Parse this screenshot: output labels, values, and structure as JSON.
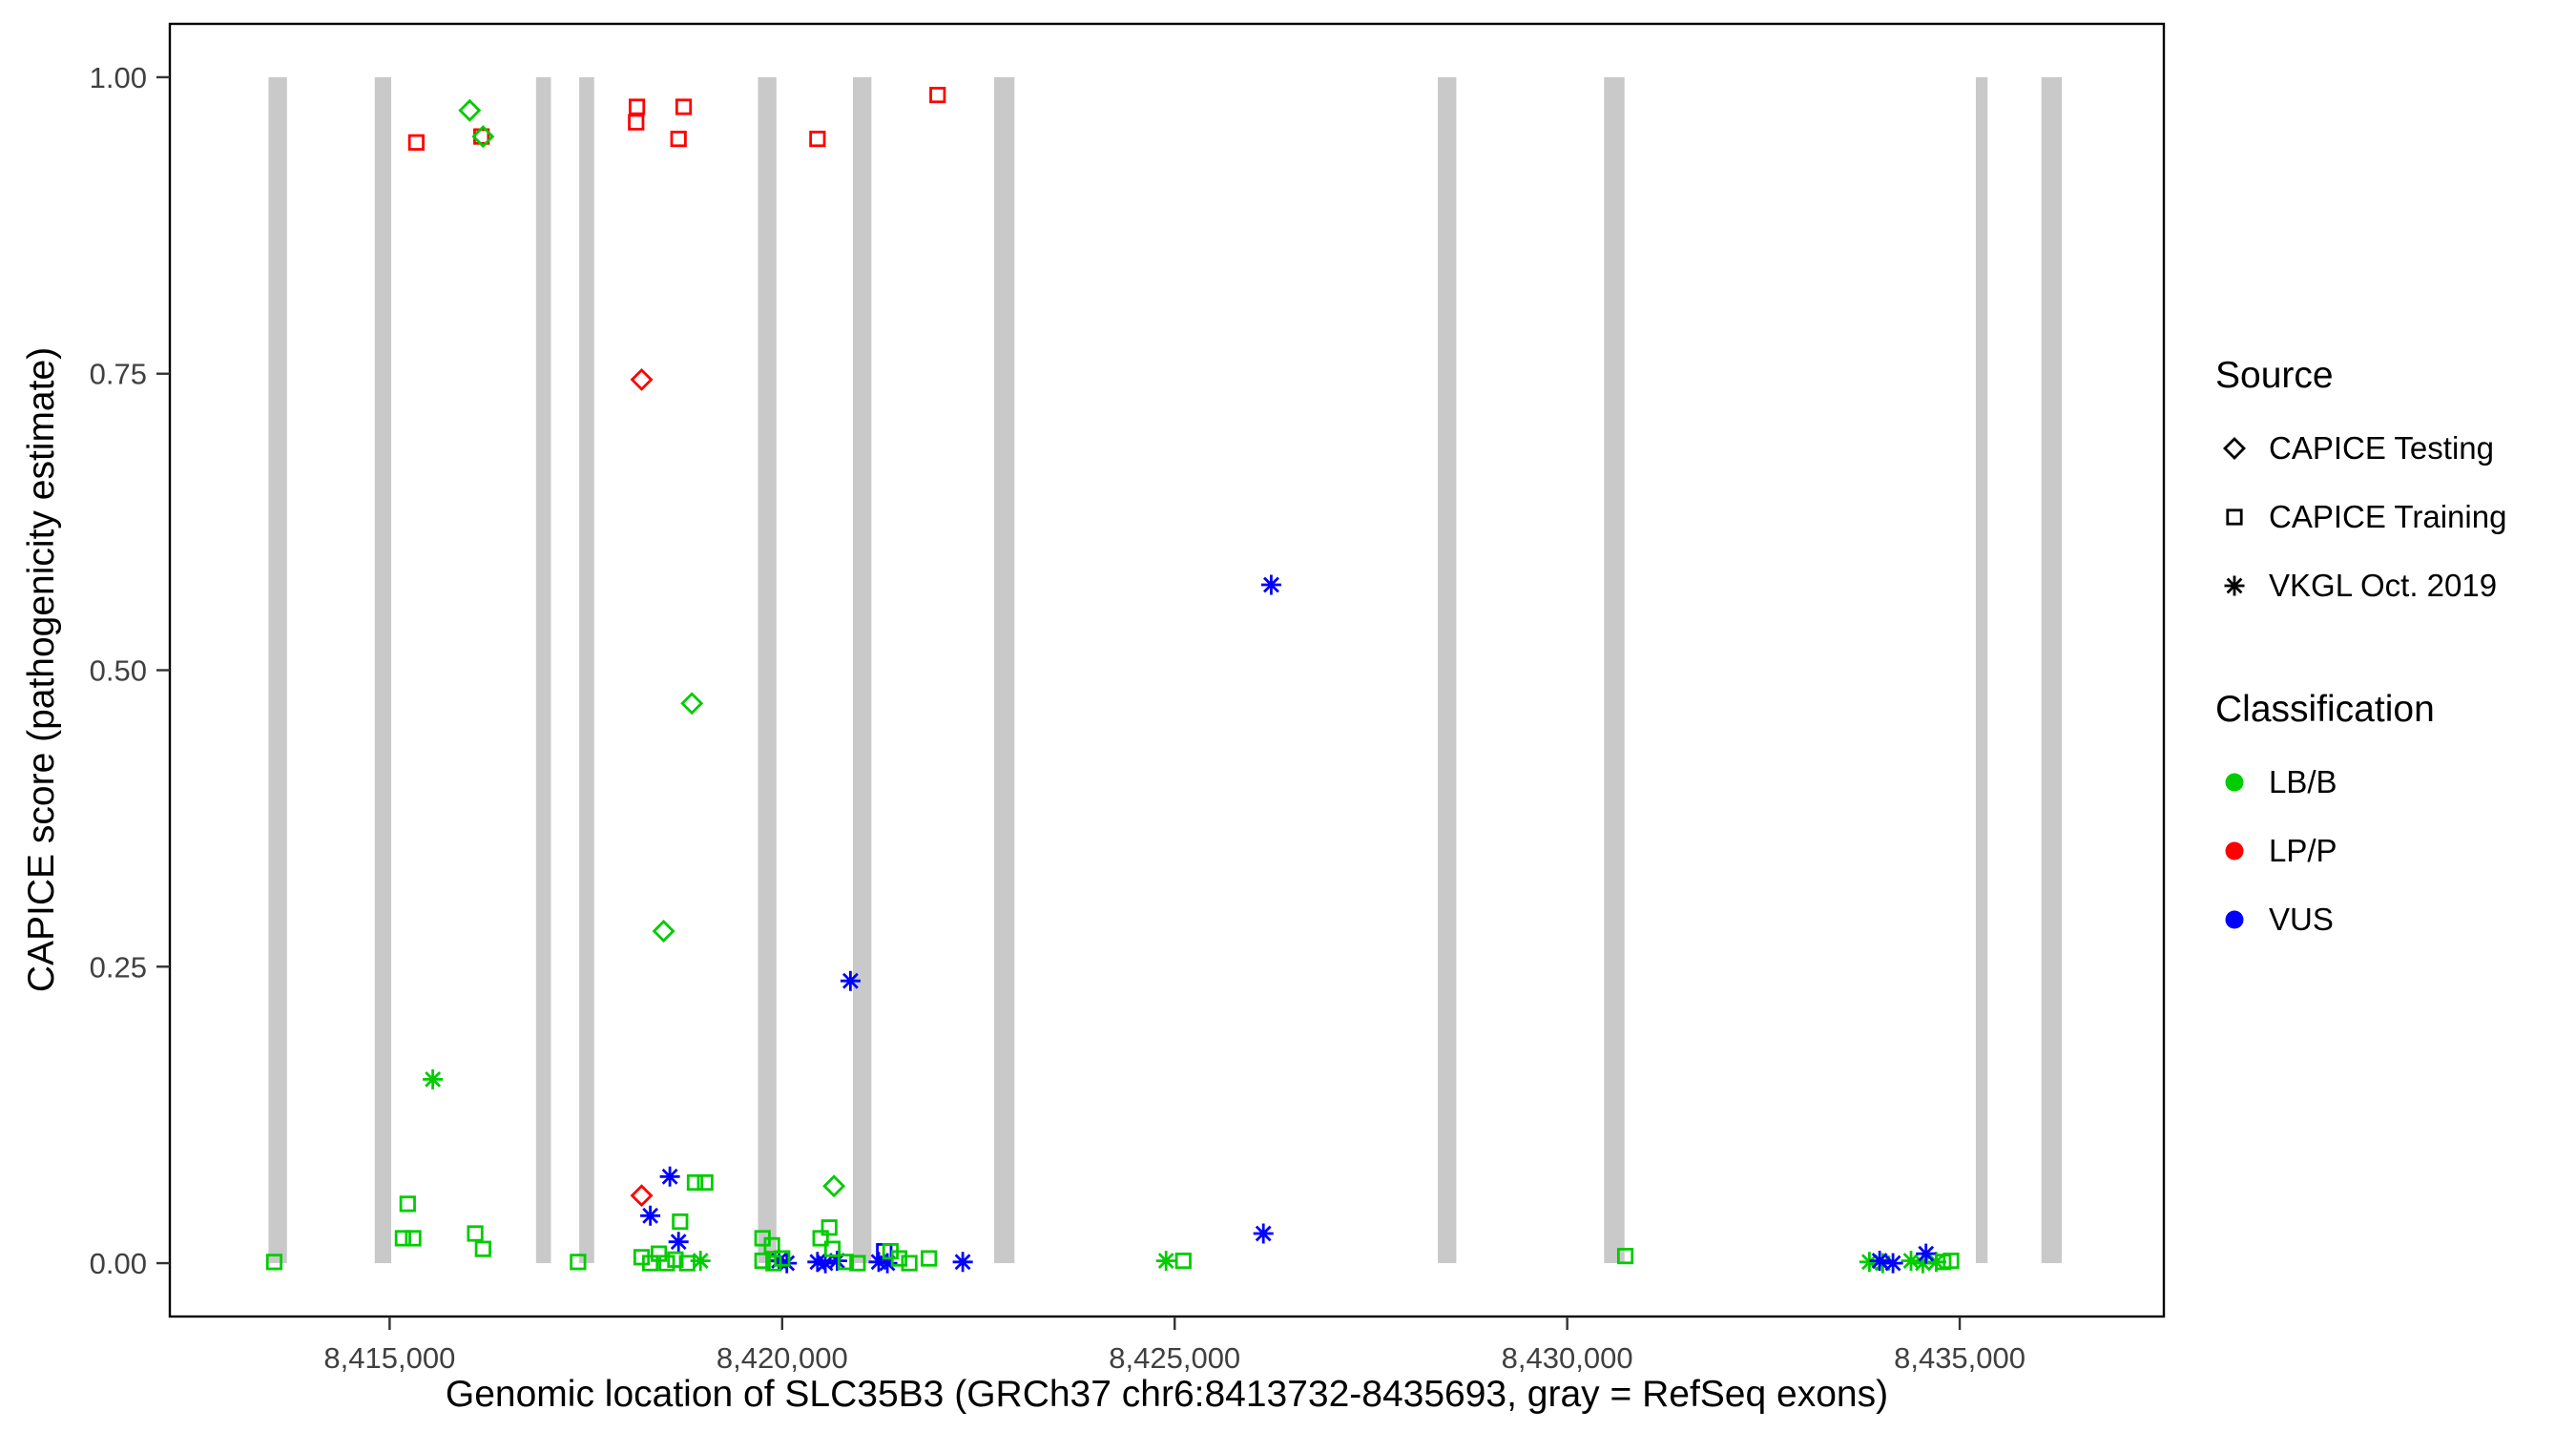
{
  "figure": {
    "background": "#FFFFFF",
    "panel_border_color": "#000000",
    "tick_label_color": "#404040"
  },
  "chart_data": {
    "type": "scatter",
    "title": "",
    "xlabel": "Genomic location of SLC35B3 (GRCh37 chr6:8413732-8435693, gray = RefSeq exons)",
    "ylabel": "CAPICE score (pathogenicity estimate)",
    "xlim": [
      8412200,
      8437600
    ],
    "ylim": [
      -0.045,
      1.045
    ],
    "grid": false,
    "legend_position": "right",
    "x_ticks": [
      {
        "value": 8415000,
        "label": "8,415,000"
      },
      {
        "value": 8420000,
        "label": "8,420,000"
      },
      {
        "value": 8425000,
        "label": "8,425,000"
      },
      {
        "value": 8430000,
        "label": "8,430,000"
      },
      {
        "value": 8435000,
        "label": "8,435,000"
      }
    ],
    "y_ticks": [
      {
        "value": 0.0,
        "label": "0.00"
      },
      {
        "value": 0.25,
        "label": "0.25"
      },
      {
        "value": 0.5,
        "label": "0.50"
      },
      {
        "value": 0.75,
        "label": "0.75"
      },
      {
        "value": 1.0,
        "label": "1.00"
      }
    ],
    "exon_color": "#C9C9C9",
    "exons": [
      {
        "start": 8413457,
        "end": 8413692
      },
      {
        "start": 8414810,
        "end": 8415020
      },
      {
        "start": 8416865,
        "end": 8417055
      },
      {
        "start": 8417415,
        "end": 8417605
      },
      {
        "start": 8419692,
        "end": 8419927
      },
      {
        "start": 8420902,
        "end": 8421137
      },
      {
        "start": 8422700,
        "end": 8422960
      },
      {
        "start": 8428352,
        "end": 8428587
      },
      {
        "start": 8430470,
        "end": 8430730
      },
      {
        "start": 8435205,
        "end": 8435355
      },
      {
        "start": 8436040,
        "end": 8436300
      }
    ],
    "shape_by_source": {
      "CAPICE Testing": "diamond",
      "CAPICE Training": "square",
      "VKGL Oct. 2019": "asterisk"
    },
    "color_by_classification": {
      "LB/B": "#00CC00",
      "LP/P": "#FF0000",
      "VUS": "#0000FF"
    },
    "points": [
      {
        "x": 8415340,
        "y": 0.945,
        "source": "CAPICE Training",
        "classification": "LP/P"
      },
      {
        "x": 8416170,
        "y": 0.95,
        "source": "CAPICE Training",
        "classification": "LP/P"
      },
      {
        "x": 8418150,
        "y": 0.975,
        "source": "CAPICE Training",
        "classification": "LP/P"
      },
      {
        "x": 8418140,
        "y": 0.962,
        "source": "CAPICE Training",
        "classification": "LP/P"
      },
      {
        "x": 8418745,
        "y": 0.975,
        "source": "CAPICE Training",
        "classification": "LP/P"
      },
      {
        "x": 8418680,
        "y": 0.948,
        "source": "CAPICE Training",
        "classification": "LP/P"
      },
      {
        "x": 8420450,
        "y": 0.948,
        "source": "CAPICE Training",
        "classification": "LP/P"
      },
      {
        "x": 8421980,
        "y": 0.985,
        "source": "CAPICE Training",
        "classification": "LP/P"
      },
      {
        "x": 8418210,
        "y": 0.745,
        "source": "CAPICE Testing",
        "classification": "LP/P"
      },
      {
        "x": 8418210,
        "y": 0.057,
        "source": "CAPICE Testing",
        "classification": "LP/P"
      },
      {
        "x": 8416020,
        "y": 0.972,
        "source": "CAPICE Testing",
        "classification": "LB/B"
      },
      {
        "x": 8416190,
        "y": 0.95,
        "source": "CAPICE Testing",
        "classification": "LB/B"
      },
      {
        "x": 8418850,
        "y": 0.472,
        "source": "CAPICE Testing",
        "classification": "LB/B"
      },
      {
        "x": 8418490,
        "y": 0.28,
        "source": "CAPICE Testing",
        "classification": "LB/B"
      },
      {
        "x": 8420660,
        "y": 0.065,
        "source": "CAPICE Testing",
        "classification": "LB/B"
      },
      {
        "x": 8415550,
        "y": 0.155,
        "source": "VKGL Oct. 2019",
        "classification": "LB/B"
      },
      {
        "x": 8418960,
        "y": 0.002,
        "source": "VKGL Oct. 2019",
        "classification": "LB/B"
      },
      {
        "x": 8424890,
        "y": 0.002,
        "source": "VKGL Oct. 2019",
        "classification": "LB/B"
      },
      {
        "x": 8433850,
        "y": 0.001,
        "source": "VKGL Oct. 2019",
        "classification": "LB/B"
      },
      {
        "x": 8434020,
        "y": 0.0,
        "source": "VKGL Oct. 2019",
        "classification": "LB/B"
      },
      {
        "x": 8434380,
        "y": 0.002,
        "source": "VKGL Oct. 2019",
        "classification": "LB/B"
      },
      {
        "x": 8434530,
        "y": 0.0,
        "source": "VKGL Oct. 2019",
        "classification": "LB/B"
      },
      {
        "x": 8434700,
        "y": 0.001,
        "source": "VKGL Oct. 2019",
        "classification": "LB/B"
      },
      {
        "x": 8420870,
        "y": 0.238,
        "source": "VKGL Oct. 2019",
        "classification": "VUS"
      },
      {
        "x": 8426230,
        "y": 0.572,
        "source": "VKGL Oct. 2019",
        "classification": "VUS"
      },
      {
        "x": 8426130,
        "y": 0.025,
        "source": "VKGL Oct. 2019",
        "classification": "VUS"
      },
      {
        "x": 8418570,
        "y": 0.073,
        "source": "VKGL Oct. 2019",
        "classification": "VUS"
      },
      {
        "x": 8418320,
        "y": 0.04,
        "source": "VKGL Oct. 2019",
        "classification": "VUS"
      },
      {
        "x": 8418680,
        "y": 0.018,
        "source": "VKGL Oct. 2019",
        "classification": "VUS"
      },
      {
        "x": 8419960,
        "y": 0.002,
        "source": "VKGL Oct. 2019",
        "classification": "VUS"
      },
      {
        "x": 8420060,
        "y": 0.0,
        "source": "VKGL Oct. 2019",
        "classification": "VUS"
      },
      {
        "x": 8420450,
        "y": 0.001,
        "source": "VKGL Oct. 2019",
        "classification": "VUS"
      },
      {
        "x": 8420550,
        "y": 0.0,
        "source": "VKGL Oct. 2019",
        "classification": "VUS"
      },
      {
        "x": 8420700,
        "y": 0.002,
        "source": "VKGL Oct. 2019",
        "classification": "VUS"
      },
      {
        "x": 8421230,
        "y": 0.001,
        "source": "VKGL Oct. 2019",
        "classification": "VUS"
      },
      {
        "x": 8421340,
        "y": 0.0,
        "source": "VKGL Oct. 2019",
        "classification": "VUS"
      },
      {
        "x": 8422300,
        "y": 0.001,
        "source": "VKGL Oct. 2019",
        "classification": "VUS"
      },
      {
        "x": 8433980,
        "y": 0.002,
        "source": "VKGL Oct. 2019",
        "classification": "VUS"
      },
      {
        "x": 8434150,
        "y": 0.0,
        "source": "VKGL Oct. 2019",
        "classification": "VUS"
      },
      {
        "x": 8434570,
        "y": 0.008,
        "source": "VKGL Oct. 2019",
        "classification": "VUS"
      },
      {
        "x": 8421300,
        "y": 0.01,
        "source": "CAPICE Training",
        "classification": "VUS"
      },
      {
        "x": 8413530,
        "y": 0.001,
        "source": "CAPICE Training",
        "classification": "LB/B"
      },
      {
        "x": 8415170,
        "y": 0.021,
        "source": "CAPICE Training",
        "classification": "LB/B"
      },
      {
        "x": 8415300,
        "y": 0.021,
        "source": "CAPICE Training",
        "classification": "LB/B"
      },
      {
        "x": 8415230,
        "y": 0.05,
        "source": "CAPICE Training",
        "classification": "LB/B"
      },
      {
        "x": 8416090,
        "y": 0.025,
        "source": "CAPICE Training",
        "classification": "LB/B"
      },
      {
        "x": 8416190,
        "y": 0.012,
        "source": "CAPICE Training",
        "classification": "LB/B"
      },
      {
        "x": 8417400,
        "y": 0.001,
        "source": "CAPICE Training",
        "classification": "LB/B"
      },
      {
        "x": 8418210,
        "y": 0.005,
        "source": "CAPICE Training",
        "classification": "LB/B"
      },
      {
        "x": 8418320,
        "y": 0.0,
        "source": "CAPICE Training",
        "classification": "LB/B"
      },
      {
        "x": 8418430,
        "y": 0.008,
        "source": "CAPICE Training",
        "classification": "LB/B"
      },
      {
        "x": 8418530,
        "y": 0.0,
        "source": "CAPICE Training",
        "classification": "LB/B"
      },
      {
        "x": 8418640,
        "y": 0.003,
        "source": "CAPICE Training",
        "classification": "LB/B"
      },
      {
        "x": 8418700,
        "y": 0.035,
        "source": "CAPICE Training",
        "classification": "LB/B"
      },
      {
        "x": 8418890,
        "y": 0.068,
        "source": "CAPICE Training",
        "classification": "LB/B"
      },
      {
        "x": 8419020,
        "y": 0.068,
        "source": "CAPICE Training",
        "classification": "LB/B"
      },
      {
        "x": 8418790,
        "y": 0.0,
        "source": "CAPICE Training",
        "classification": "LB/B"
      },
      {
        "x": 8419750,
        "y": 0.021,
        "source": "CAPICE Training",
        "classification": "LB/B"
      },
      {
        "x": 8419870,
        "y": 0.015,
        "source": "CAPICE Training",
        "classification": "LB/B"
      },
      {
        "x": 8419750,
        "y": 0.002,
        "source": "CAPICE Training",
        "classification": "LB/B"
      },
      {
        "x": 8419890,
        "y": 0.0,
        "source": "CAPICE Training",
        "classification": "LB/B"
      },
      {
        "x": 8420000,
        "y": 0.004,
        "source": "CAPICE Training",
        "classification": "LB/B"
      },
      {
        "x": 8420490,
        "y": 0.021,
        "source": "CAPICE Training",
        "classification": "LB/B"
      },
      {
        "x": 8420600,
        "y": 0.03,
        "source": "CAPICE Training",
        "classification": "LB/B"
      },
      {
        "x": 8420640,
        "y": 0.012,
        "source": "CAPICE Training",
        "classification": "LB/B"
      },
      {
        "x": 8420810,
        "y": 0.001,
        "source": "CAPICE Training",
        "classification": "LB/B"
      },
      {
        "x": 8420960,
        "y": 0.0,
        "source": "CAPICE Training",
        "classification": "LB/B"
      },
      {
        "x": 8421380,
        "y": 0.01,
        "source": "CAPICE Training",
        "classification": "LB/B"
      },
      {
        "x": 8421490,
        "y": 0.004,
        "source": "CAPICE Training",
        "classification": "LB/B"
      },
      {
        "x": 8421620,
        "y": 0.0,
        "source": "CAPICE Training",
        "classification": "LB/B"
      },
      {
        "x": 8421870,
        "y": 0.004,
        "source": "CAPICE Training",
        "classification": "LB/B"
      },
      {
        "x": 8425110,
        "y": 0.002,
        "source": "CAPICE Training",
        "classification": "LB/B"
      },
      {
        "x": 8430740,
        "y": 0.006,
        "source": "CAPICE Training",
        "classification": "LB/B"
      },
      {
        "x": 8434790,
        "y": 0.001,
        "source": "CAPICE Training",
        "classification": "LB/B"
      },
      {
        "x": 8434890,
        "y": 0.002,
        "source": "CAPICE Training",
        "classification": "LB/B"
      }
    ]
  },
  "legend": {
    "source": {
      "title": "Source",
      "items": [
        {
          "label": "CAPICE Testing",
          "shape": "diamond",
          "color": "#000000"
        },
        {
          "label": "CAPICE Training",
          "shape": "square",
          "color": "#000000"
        },
        {
          "label": "VKGL Oct. 2019",
          "shape": "asterisk",
          "color": "#000000"
        }
      ]
    },
    "classification": {
      "title": "Classification",
      "items": [
        {
          "label": "LB/B",
          "shape": "circle",
          "color": "#00CC00"
        },
        {
          "label": "LP/P",
          "shape": "circle",
          "color": "#FF0000"
        },
        {
          "label": "VUS",
          "shape": "circle",
          "color": "#0000FF"
        }
      ]
    }
  }
}
